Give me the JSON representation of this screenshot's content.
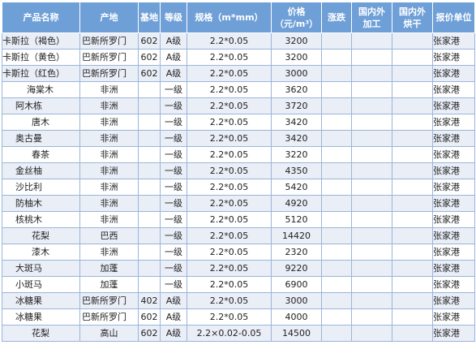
{
  "headers": {
    "name": "产品名称",
    "origin": "产地",
    "base": "基地",
    "grade": "等级",
    "spec": "规格（m*mm）",
    "price_line1": "价格",
    "price_line2": "（元/m³）",
    "change": "涨跌",
    "dom_proc_line1": "国内外",
    "dom_proc_line2": "加工",
    "dom_dry_line1": "国内外",
    "dom_dry_line2": "烘干",
    "quote": "报价单位"
  },
  "rows": [
    {
      "name": "卡斯拉（褐色）",
      "origin": "巴新所罗门",
      "base": "602",
      "grade": "A级",
      "spec": "2.2*0.05",
      "price": "3200",
      "change": "",
      "proc": "",
      "dry": "",
      "quote": "张家港"
    },
    {
      "name": "卡斯拉（黄色）",
      "origin": "巴新所罗门",
      "base": "602",
      "grade": "A级",
      "spec": "2.2*0.05",
      "price": "3200",
      "change": "",
      "proc": "",
      "dry": "",
      "quote": "张家港"
    },
    {
      "name": "卡斯拉（红色）",
      "origin": "巴新所罗门",
      "base": "602",
      "grade": "A级",
      "spec": "2.2*0.05",
      "price": "3000",
      "change": "",
      "proc": "",
      "dry": "",
      "quote": "张家港"
    },
    {
      "name": "海棠木",
      "origin": "非洲",
      "base": "",
      "grade": "一级",
      "spec": "2.2*0.05",
      "price": "3620",
      "change": "",
      "proc": "",
      "dry": "",
      "quote": "张家港"
    },
    {
      "name": "阿木栋",
      "origin": "非洲",
      "base": "",
      "grade": "一级",
      "spec": "2.2*0.05",
      "price": "3720",
      "change": "",
      "proc": "",
      "dry": "",
      "quote": "张家港"
    },
    {
      "name": "唐木",
      "origin": "非洲",
      "base": "",
      "grade": "一级",
      "spec": "2.2*0.05",
      "price": "3420",
      "change": "",
      "proc": "",
      "dry": "",
      "quote": "张家港"
    },
    {
      "name": "奥古曼",
      "origin": "非洲",
      "base": "",
      "grade": "一级",
      "spec": "2.2*0.05",
      "price": "3420",
      "change": "",
      "proc": "",
      "dry": "",
      "quote": "张家港"
    },
    {
      "name": "春茶",
      "origin": "非洲",
      "base": "",
      "grade": "一级",
      "spec": "2.2*0.05",
      "price": "3220",
      "change": "",
      "proc": "",
      "dry": "",
      "quote": "张家港"
    },
    {
      "name": "金丝柚",
      "origin": "非洲",
      "base": "",
      "grade": "一级",
      "spec": "2.2*0.05",
      "price": "4350",
      "change": "",
      "proc": "",
      "dry": "",
      "quote": "张家港"
    },
    {
      "name": "沙比利",
      "origin": "非洲",
      "base": "",
      "grade": "一级",
      "spec": "2.2*0.05",
      "price": "5420",
      "change": "",
      "proc": "",
      "dry": "",
      "quote": "张家港"
    },
    {
      "name": "防柚木",
      "origin": "非洲",
      "base": "",
      "grade": "一级",
      "spec": "2.2*0.05",
      "price": "4920",
      "change": "",
      "proc": "",
      "dry": "",
      "quote": "张家港"
    },
    {
      "name": "核桃木",
      "origin": "非洲",
      "base": "",
      "grade": "一级",
      "spec": "2.2*0.05",
      "price": "5120",
      "change": "",
      "proc": "",
      "dry": "",
      "quote": "张家港"
    },
    {
      "name": "花梨",
      "origin": "巴西",
      "base": "",
      "grade": "一级",
      "spec": "2.2*0.05",
      "price": "14420",
      "change": "",
      "proc": "",
      "dry": "",
      "quote": "张家港"
    },
    {
      "name": "漆木",
      "origin": "非洲",
      "base": "",
      "grade": "一级",
      "spec": "2.2*0.05",
      "price": "2320",
      "change": "",
      "proc": "",
      "dry": "",
      "quote": "张家港"
    },
    {
      "name": "大斑马",
      "origin": "加蓬",
      "base": "",
      "grade": "一级",
      "spec": "2.2*0.05",
      "price": "9220",
      "change": "",
      "proc": "",
      "dry": "",
      "quote": "张家港"
    },
    {
      "name": "小斑马",
      "origin": "加蓬",
      "base": "",
      "grade": "一级",
      "spec": "2.2*0.05",
      "price": "6900",
      "change": "",
      "proc": "",
      "dry": "",
      "quote": "张家港"
    },
    {
      "name": "冰糖果",
      "origin": "巴新所罗门",
      "base": "402",
      "grade": "A级",
      "spec": "2.2*0.05",
      "price": "3000",
      "change": "",
      "proc": "",
      "dry": "",
      "quote": "张家港"
    },
    {
      "name": "冰糖果",
      "origin": "巴新所罗门",
      "base": "602",
      "grade": "A级",
      "spec": "2.2*0.05",
      "price": "4000",
      "change": "",
      "proc": "",
      "dry": "",
      "quote": "张家港"
    },
    {
      "name": "花梨",
      "origin": "高山",
      "base": "602",
      "grade": "A级",
      "spec": "2.2×0.02-0.05",
      "price": "14500",
      "change": "",
      "proc": "",
      "dry": "",
      "quote": "张家港"
    }
  ]
}
